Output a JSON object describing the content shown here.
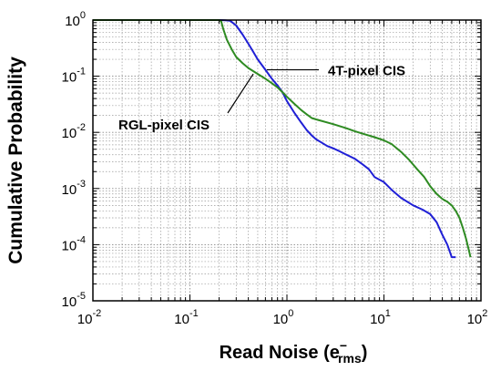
{
  "chart_data": {
    "type": "line",
    "xlabel": "Read Noise (e",
    "xlabel_sup": "−",
    "xlabel_sub": "rms",
    "xlabel_close": ")",
    "ylabel": "Cumulative Probability",
    "x_scale": "log",
    "y_scale": "log",
    "xlim": [
      0.01,
      100
    ],
    "ylim": [
      1e-05,
      1
    ],
    "grid": true,
    "x_ticks": [
      {
        "base": "10",
        "exp": "-2"
      },
      {
        "base": "10",
        "exp": "-1"
      },
      {
        "base": "10",
        "exp": "0"
      },
      {
        "base": "10",
        "exp": "1"
      },
      {
        "base": "10",
        "exp": "2"
      }
    ],
    "y_ticks": [
      {
        "base": "10",
        "exp": "0"
      },
      {
        "base": "10",
        "exp": "-1"
      },
      {
        "base": "10",
        "exp": "-2"
      },
      {
        "base": "10",
        "exp": "-3"
      },
      {
        "base": "10",
        "exp": "-4"
      },
      {
        "base": "10",
        "exp": "-5"
      }
    ],
    "annotations": [
      {
        "text": "4T-pixel CIS",
        "series": 0
      },
      {
        "text": "RGL-pixel CIS",
        "series": 1
      }
    ],
    "series": [
      {
        "name": "4T-pixel CIS",
        "color": "#1f1fd6",
        "points": [
          [
            0.01,
            1
          ],
          [
            0.2,
            1
          ],
          [
            0.23,
            0.99
          ],
          [
            0.26,
            0.97
          ],
          [
            0.3,
            0.8
          ],
          [
            0.35,
            0.55
          ],
          [
            0.4,
            0.38
          ],
          [
            0.45,
            0.27
          ],
          [
            0.5,
            0.2
          ],
          [
            0.6,
            0.13
          ],
          [
            0.7,
            0.09
          ],
          [
            0.8,
            0.068
          ],
          [
            0.9,
            0.052
          ],
          [
            1.0,
            0.036
          ],
          [
            1.2,
            0.022
          ],
          [
            1.4,
            0.015
          ],
          [
            1.6,
            0.011
          ],
          [
            1.8,
            0.0088
          ],
          [
            2.0,
            0.0075
          ],
          [
            2.3,
            0.0065
          ],
          [
            2.6,
            0.0057
          ],
          [
            3.0,
            0.0052
          ],
          [
            3.5,
            0.0046
          ],
          [
            4.0,
            0.0041
          ],
          [
            5.0,
            0.0034
          ],
          [
            6.0,
            0.0027
          ],
          [
            7.0,
            0.0022
          ],
          [
            8.0,
            0.0016
          ],
          [
            10.0,
            0.0013
          ],
          [
            12.0,
            0.00095
          ],
          [
            15.0,
            0.00068
          ],
          [
            20.0,
            0.0005
          ],
          [
            25.0,
            0.00042
          ],
          [
            30.0,
            0.00035
          ],
          [
            35.0,
            0.00025
          ],
          [
            40.0,
            0.00015
          ],
          [
            45.0,
            0.0001
          ],
          [
            50.0,
            6e-05
          ],
          [
            55.0,
            6e-05
          ]
        ]
      },
      {
        "name": "RGL-pixel CIS",
        "color": "#2e8b22",
        "points": [
          [
            0.01,
            1
          ],
          [
            0.2,
            1
          ],
          [
            0.21,
            0.95
          ],
          [
            0.22,
            0.7
          ],
          [
            0.24,
            0.45
          ],
          [
            0.27,
            0.3
          ],
          [
            0.3,
            0.22
          ],
          [
            0.35,
            0.17
          ],
          [
            0.4,
            0.14
          ],
          [
            0.5,
            0.11
          ],
          [
            0.6,
            0.09
          ],
          [
            0.7,
            0.075
          ],
          [
            0.8,
            0.063
          ],
          [
            0.9,
            0.052
          ],
          [
            1.0,
            0.043
          ],
          [
            1.2,
            0.032
          ],
          [
            1.4,
            0.025
          ],
          [
            1.6,
            0.021
          ],
          [
            1.8,
            0.018
          ],
          [
            2.0,
            0.017
          ],
          [
            3.0,
            0.014
          ],
          [
            4.0,
            0.012
          ],
          [
            5.0,
            0.0105
          ],
          [
            6.0,
            0.0095
          ],
          [
            8.0,
            0.0082
          ],
          [
            10.0,
            0.0072
          ],
          [
            12.0,
            0.0062
          ],
          [
            15.0,
            0.0045
          ],
          [
            18.0,
            0.0033
          ],
          [
            22.0,
            0.0022
          ],
          [
            26.0,
            0.0016
          ],
          [
            30.0,
            0.0011
          ],
          [
            35.0,
            0.0008
          ],
          [
            40.0,
            0.00065
          ],
          [
            45.0,
            0.00058
          ],
          [
            50.0,
            0.0005
          ],
          [
            55.0,
            0.0004
          ],
          [
            60.0,
            0.0003
          ],
          [
            65.0,
            0.0002
          ],
          [
            70.0,
            0.00013
          ],
          [
            75.0,
            8e-05
          ],
          [
            78.0,
            6e-05
          ]
        ]
      }
    ]
  }
}
